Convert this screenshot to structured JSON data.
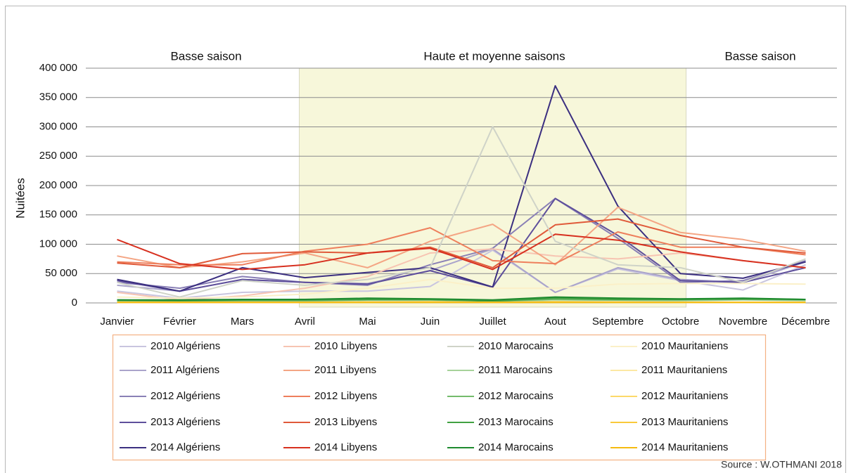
{
  "chart_data": {
    "type": "line",
    "y_label": "Nuitées",
    "source": "Source : W.OTHMANI 2018",
    "annotations": [
      "Basse saison",
      "Haute et moyenne saisons",
      "Basse saison"
    ],
    "highlight": {
      "from": "Avril",
      "to": "Octobre",
      "color": "#f7f7da"
    },
    "categories": [
      "Janvier",
      "Février",
      "Mars",
      "Avril",
      "Mai",
      "Juin",
      "Juillet",
      "Aout",
      "Septembre",
      "Octobre",
      "Novembre",
      "Décembre"
    ],
    "ylim": [
      0,
      400000
    ],
    "yticks": [
      0,
      {
        "value": 50000,
        "label": "50 000"
      },
      {
        "value": 100000,
        "label": "100 000"
      },
      {
        "value": 150000,
        "label": "150 000"
      },
      {
        "value": 200000,
        "label": "200 000"
      },
      {
        "value": 250000,
        "label": "250 000"
      },
      {
        "value": 300000,
        "label": "300 000"
      },
      {
        "value": 350000,
        "label": "350 000"
      },
      {
        "value": 400000,
        "label": "400 000"
      }
    ],
    "grid": true,
    "series": [
      {
        "name": "2010 Algériens",
        "color": "#c9c5df",
        "values": [
          20000,
          8000,
          18000,
          20000,
          20000,
          28000,
          90000,
          18000,
          58000,
          38000,
          22000,
          65000
        ]
      },
      {
        "name": "2011 Algériens",
        "color": "#aaa4cb",
        "values": [
          30000,
          20000,
          40000,
          35000,
          33000,
          55000,
          92000,
          18000,
          60000,
          40000,
          35000,
          70000
        ]
      },
      {
        "name": "2012 Algériens",
        "color": "#8a80b6",
        "values": [
          35000,
          25000,
          45000,
          35000,
          30000,
          65000,
          93000,
          178000,
          110000,
          35000,
          38000,
          72000
        ]
      },
      {
        "name": "2013 Algériens",
        "color": "#5e4f9b",
        "values": [
          38000,
          20000,
          40000,
          35000,
          32000,
          55000,
          27000,
          178000,
          115000,
          38000,
          35000,
          60000
        ]
      },
      {
        "name": "2014 Algériens",
        "color": "#3b2f80",
        "values": [
          40000,
          20000,
          60000,
          43000,
          52000,
          60000,
          27000,
          370000,
          165000,
          50000,
          42000,
          70000
        ]
      },
      {
        "name": "2010 Libyens",
        "color": "#f7c4b2",
        "values": [
          18000,
          5000,
          12000,
          25000,
          45000,
          85000,
          92000,
          80000,
          75000,
          85000,
          72000,
          60000
        ]
      },
      {
        "name": "2011 Libyens",
        "color": "#f4a584",
        "values": [
          80000,
          60000,
          70000,
          85000,
          60000,
          105000,
          134000,
          65000,
          163000,
          120000,
          108000,
          88000
        ]
      },
      {
        "name": "2012 Libyens",
        "color": "#ee7f5c",
        "values": [
          70000,
          65000,
          65000,
          88000,
          100000,
          128000,
          72000,
          67000,
          121000,
          95000,
          95000,
          82000
        ]
      },
      {
        "name": "2013 Libyens",
        "color": "#e05a3a",
        "values": [
          68000,
          60000,
          84000,
          87000,
          85000,
          95000,
          60000,
          133000,
          143000,
          115000,
          95000,
          85000
        ]
      },
      {
        "name": "2014 Libyens",
        "color": "#d7301f",
        "values": [
          108000,
          67000,
          57000,
          65000,
          85000,
          93000,
          57000,
          117000,
          107000,
          87000,
          72000,
          60000
        ]
      },
      {
        "name": "2010 Marocains",
        "color": "#cfd3c8",
        "values": [
          35000,
          10000,
          38000,
          30000,
          40000,
          60000,
          300000,
          105000,
          65000,
          60000,
          35000,
          75000
        ]
      },
      {
        "name": "2011 Marocains",
        "color": "#a6d29a",
        "values": [
          3000,
          2000,
          3000,
          3000,
          4000,
          4000,
          2000,
          3000,
          4000,
          4000,
          5000,
          4000
        ]
      },
      {
        "name": "2012 Marocains",
        "color": "#74bb6c",
        "values": [
          4000,
          3000,
          4000,
          4000,
          5000,
          5000,
          3000,
          6000,
          5000,
          5000,
          6000,
          5000
        ]
      },
      {
        "name": "2013 Marocains",
        "color": "#41a142",
        "values": [
          5000,
          4000,
          5000,
          5000,
          6000,
          6000,
          3000,
          8000,
          6000,
          6000,
          7000,
          6000
        ]
      },
      {
        "name": "2014 Marocains",
        "color": "#1e8a2e",
        "values": [
          5000,
          5000,
          6000,
          6000,
          8000,
          7000,
          5000,
          10000,
          8000,
          7000,
          8000,
          6000
        ]
      },
      {
        "name": "2010 Mauritaniens",
        "color": "#fbf0c8",
        "values": [
          10000,
          8000,
          10000,
          15000,
          25000,
          40000,
          25000,
          25000,
          32000,
          33000,
          33000,
          32000
        ]
      },
      {
        "name": "2011 Mauritaniens",
        "color": "#fce8a4",
        "values": [
          1000,
          1000,
          1000,
          1000,
          2000,
          2000,
          1000,
          2000,
          2000,
          1000,
          1000,
          1000
        ]
      },
      {
        "name": "2012 Mauritaniens",
        "color": "#fcd96a",
        "values": [
          1000,
          1000,
          1000,
          1000,
          1000,
          2000,
          1000,
          2000,
          1000,
          1000,
          1000,
          1000
        ]
      },
      {
        "name": "2013 Mauritaniens",
        "color": "#f9c93a",
        "values": [
          1000,
          1000,
          1000,
          1000,
          1000,
          1000,
          1000,
          1000,
          1000,
          1000,
          1000,
          1000
        ]
      },
      {
        "name": "2014 Mauritaniens",
        "color": "#f5bb10",
        "values": [
          1000,
          1000,
          1000,
          1000,
          1000,
          1000,
          1000,
          1000,
          1000,
          1000,
          1000,
          1000
        ]
      }
    ]
  }
}
